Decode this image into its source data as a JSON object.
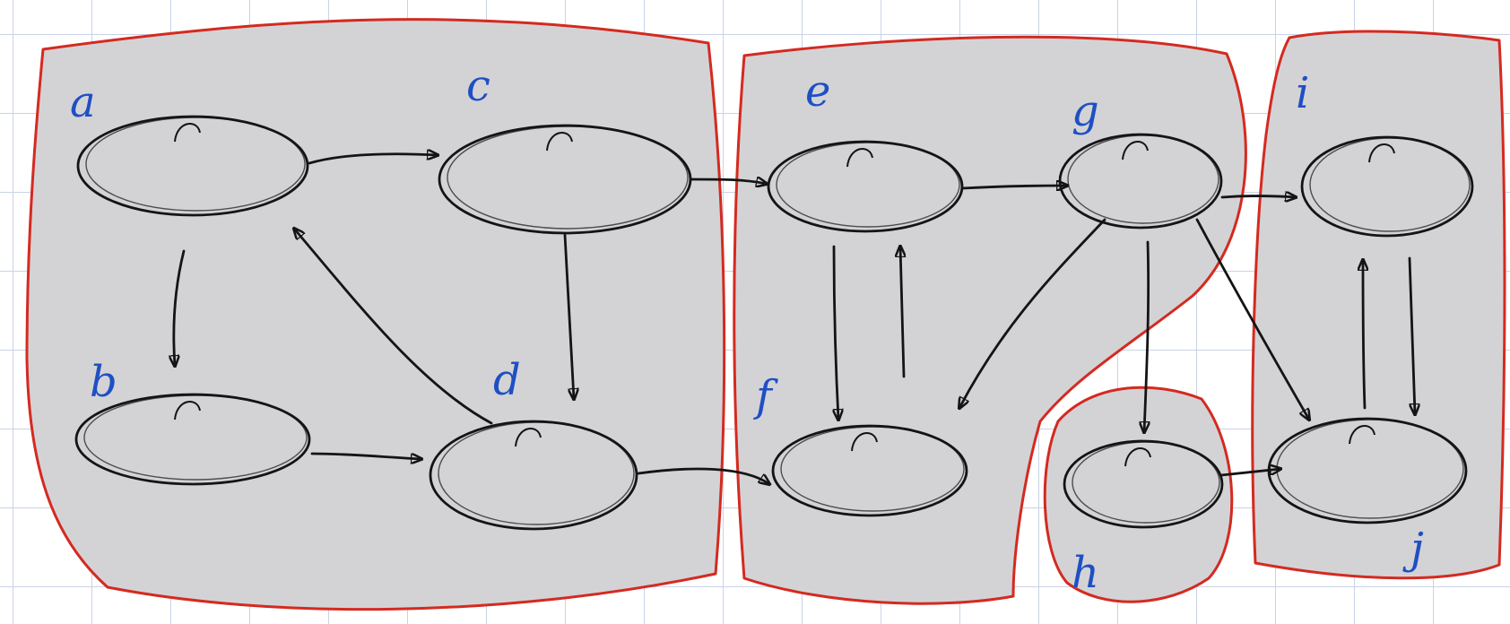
{
  "diagram": {
    "colors": {
      "scc_fill": "#d3d3d6",
      "scc_border": "#d42a20",
      "ink": "#141414",
      "label": "#1f4fc4"
    },
    "nodes": [
      {
        "id": "a",
        "label": "a"
      },
      {
        "id": "b",
        "label": "b"
      },
      {
        "id": "c",
        "label": "c"
      },
      {
        "id": "d",
        "label": "d"
      },
      {
        "id": "e",
        "label": "e"
      },
      {
        "id": "f",
        "label": "f"
      },
      {
        "id": "g",
        "label": "g"
      },
      {
        "id": "h",
        "label": "h"
      },
      {
        "id": "i",
        "label": "i"
      },
      {
        "id": "j",
        "label": "j"
      }
    ],
    "edges": [
      {
        "from": "a",
        "to": "c"
      },
      {
        "from": "a",
        "to": "b"
      },
      {
        "from": "b",
        "to": "d"
      },
      {
        "from": "c",
        "to": "d"
      },
      {
        "from": "d",
        "to": "a"
      },
      {
        "from": "c",
        "to": "e"
      },
      {
        "from": "d",
        "to": "f"
      },
      {
        "from": "e",
        "to": "g"
      },
      {
        "from": "e",
        "to": "f"
      },
      {
        "from": "f",
        "to": "e"
      },
      {
        "from": "g",
        "to": "f"
      },
      {
        "from": "g",
        "to": "h"
      },
      {
        "from": "g",
        "to": "i"
      },
      {
        "from": "g",
        "to": "j"
      },
      {
        "from": "h",
        "to": "j"
      },
      {
        "from": "i",
        "to": "j"
      },
      {
        "from": "j",
        "to": "i"
      }
    ],
    "components": [
      {
        "members": [
          "a",
          "b",
          "c",
          "d"
        ]
      },
      {
        "members": [
          "e",
          "f",
          "g"
        ]
      },
      {
        "members": [
          "h"
        ]
      },
      {
        "members": [
          "i",
          "j"
        ]
      }
    ]
  }
}
